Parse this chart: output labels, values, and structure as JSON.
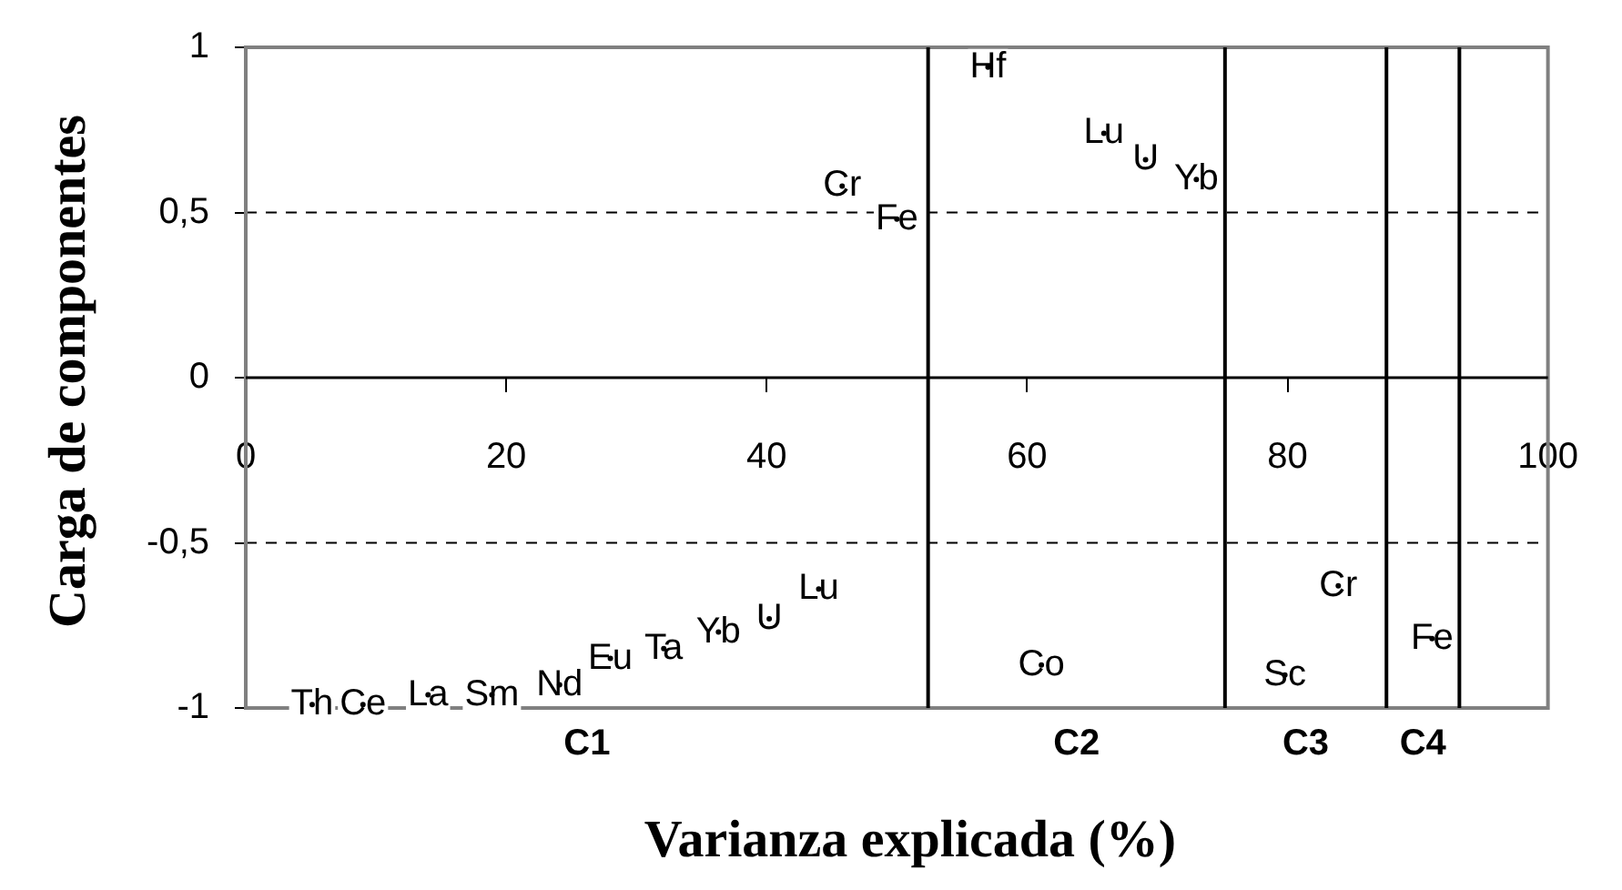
{
  "chart_data": {
    "type": "scatter",
    "xlabel": "Varianza explicada (%)",
    "ylabel": "Carga de componentes",
    "xlim": [
      0,
      100
    ],
    "xticks": [
      0,
      20,
      40,
      60,
      80,
      100
    ],
    "ylim": [
      -1,
      1
    ],
    "yticks": [
      -1,
      {
        "value": -0.5,
        "label": "-0,5"
      },
      0,
      {
        "value": 0.5,
        "label": "0,5"
      },
      1
    ],
    "grid": "y",
    "series": [
      {
        "color": "#000000",
        "x": [
          5.1,
          9.0,
          14.0,
          18.9,
          24.1,
          28.0,
          32.1,
          36.3,
          40.2,
          44.0,
          45.8,
          50.0,
          57.0,
          65.9,
          69.1,
          73.0,
          61.1,
          79.8,
          83.9,
          91.1
        ],
        "values": [
          -0.99,
          -0.99,
          -0.96,
          -0.96,
          -0.93,
          -0.85,
          -0.82,
          -0.77,
          -0.73,
          -0.64,
          0.58,
          0.48,
          0.94,
          0.74,
          0.66,
          0.6,
          -0.87,
          -0.9,
          -0.63,
          -0.79
        ],
        "value_labels": [
          "Th",
          "Ce",
          "La",
          "Sm",
          "Nd",
          "Eu",
          "Ta",
          "Yb",
          "U",
          "Lu",
          "Cr",
          "Fe",
          "Hf",
          "Lu",
          "U",
          "Yb",
          "Co",
          "Sc",
          "Cr",
          "Fe"
        ]
      }
    ],
    "ref_lines": [
      {
        "axis": "x",
        "value": 52.4,
        "color": "#000000"
      },
      {
        "axis": "x",
        "value": 75.2,
        "color": "#000000"
      },
      {
        "axis": "x",
        "value": 87.6,
        "color": "#000000"
      },
      {
        "axis": "x",
        "value": 93.2,
        "color": "#000000"
      }
    ],
    "annotations": [
      "C1",
      "C2",
      "C3",
      "C4"
    ]
  }
}
